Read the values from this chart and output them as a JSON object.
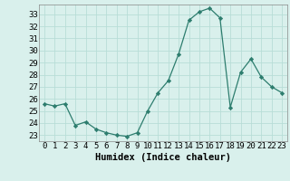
{
  "x": [
    0,
    1,
    2,
    3,
    4,
    5,
    6,
    7,
    8,
    9,
    10,
    11,
    12,
    13,
    14,
    15,
    16,
    17,
    18,
    19,
    20,
    21,
    22,
    23
  ],
  "y": [
    25.6,
    25.4,
    25.6,
    23.8,
    24.1,
    23.5,
    23.2,
    23.0,
    22.9,
    23.2,
    25.0,
    26.5,
    27.5,
    29.7,
    32.5,
    33.2,
    33.5,
    32.7,
    25.3,
    28.2,
    29.3,
    27.8,
    27.0,
    26.5
  ],
  "line_color": "#2d7d6e",
  "marker": "D",
  "marker_size": 2.2,
  "bg_color": "#d9f0ec",
  "grid_color": "#b8ddd7",
  "xlabel": "Humidex (Indice chaleur)",
  "tick_fontsize": 6.5,
  "xlabel_fontsize": 7.5,
  "ylim": [
    22.5,
    33.8
  ],
  "yticks": [
    23,
    24,
    25,
    26,
    27,
    28,
    29,
    30,
    31,
    32,
    33
  ],
  "xlim": [
    -0.5,
    23.5
  ]
}
